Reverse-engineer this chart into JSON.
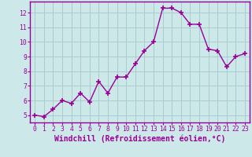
{
  "x": [
    0,
    1,
    2,
    3,
    4,
    5,
    6,
    7,
    8,
    9,
    10,
    11,
    12,
    13,
    14,
    15,
    16,
    17,
    18,
    19,
    20,
    21,
    22,
    23
  ],
  "y": [
    5.0,
    4.9,
    5.4,
    6.0,
    5.8,
    6.5,
    5.9,
    7.3,
    6.5,
    7.6,
    7.6,
    8.5,
    9.4,
    10.0,
    12.3,
    12.3,
    12.0,
    11.2,
    11.2,
    9.5,
    9.4,
    8.3,
    9.0,
    9.2
  ],
  "line_color": "#990099",
  "marker": "+",
  "marker_size": 4,
  "marker_lw": 1.2,
  "bg_color": "#cce8e8",
  "grid_color": "#aacccc",
  "axis_color": "#990099",
  "xlabel": "Windchill (Refroidissement éolien,°C)",
  "xlim": [
    -0.5,
    23.5
  ],
  "ylim": [
    4.5,
    12.75
  ],
  "yticks": [
    5,
    6,
    7,
    8,
    9,
    10,
    11,
    12
  ],
  "xticks": [
    0,
    1,
    2,
    3,
    4,
    5,
    6,
    7,
    8,
    9,
    10,
    11,
    12,
    13,
    14,
    15,
    16,
    17,
    18,
    19,
    20,
    21,
    22,
    23
  ],
  "tick_fontsize": 5.8,
  "xlabel_fontsize": 7.0,
  "line_width": 1.0,
  "title": ""
}
